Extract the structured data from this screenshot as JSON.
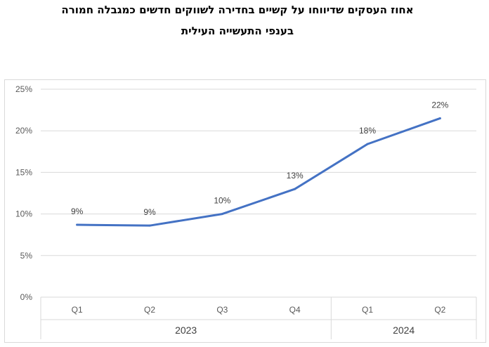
{
  "title_line1": "אחוז העסקים שדיווחו על קשיים בחדירה לשווקים חדשים כמגבלה חמורה",
  "title_line2": "בענפי התעשייה העילית",
  "chart_data": {
    "type": "line",
    "categories": [
      "Q1",
      "Q2",
      "Q3",
      "Q4",
      "Q1",
      "Q2"
    ],
    "groups": [
      {
        "label": "2023",
        "span": 4
      },
      {
        "label": "2024",
        "span": 2
      }
    ],
    "series": [
      {
        "values": [
          8.7,
          8.6,
          10.0,
          13.0,
          18.4,
          21.5
        ],
        "labels": [
          "9%",
          "9%",
          "10%",
          "13%",
          "18%",
          "22%"
        ],
        "color": "#4472c4"
      }
    ],
    "yticks": [
      "0%",
      "5%",
      "10%",
      "15%",
      "20%",
      "25%"
    ],
    "ylim": [
      0,
      25
    ],
    "grid": true,
    "gridColor": "#d9d9d9"
  }
}
